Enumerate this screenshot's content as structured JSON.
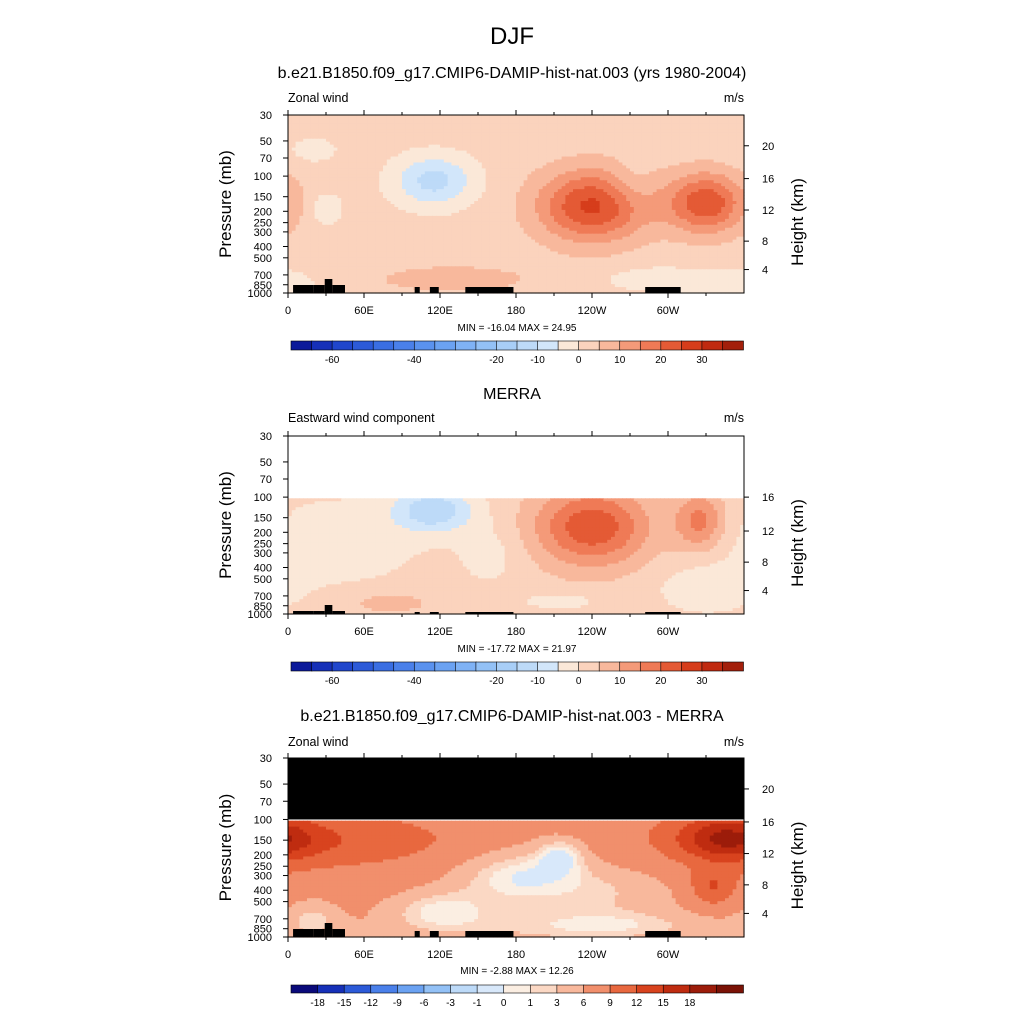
{
  "figure": {
    "title": "DJF"
  },
  "panels": [
    {
      "id": "model",
      "title": "b.e21.B1850.f09_g17.CMIP6-DAMIP-hist-nat.003 (yrs 1980-2004)",
      "left_label": "Zonal wind",
      "right_label": "m/s",
      "stats": "MIN = -16.04  MAX =  24.95"
    },
    {
      "id": "obs",
      "title": "MERRA",
      "left_label": "Eastward wind component",
      "right_label": "m/s",
      "stats": "MIN = -17.72  MAX =  21.97"
    },
    {
      "id": "diff",
      "title": "b.e21.B1850.f09_g17.CMIP6-DAMIP-hist-nat.003 - MERRA",
      "left_label": "Zonal wind",
      "right_label": "m/s",
      "stats": "MIN = -2.88  MAX =  12.26"
    }
  ],
  "chart_data": [
    {
      "type": "heatmap",
      "title": "b.e21.B1850.f09_g17.CMIP6-DAMIP-hist-nat.003 (yrs 1980-2004)",
      "xlabel": "",
      "ylabel": "Pressure (mb)",
      "ylabel_right": "Height (km)",
      "x_ticks": [
        "0",
        "60E",
        "120E",
        "180",
        "120W",
        "60W"
      ],
      "x_tick_values": [
        0,
        60,
        120,
        180,
        240,
        300
      ],
      "xlim": [
        0,
        360
      ],
      "y_ticks": [
        "30",
        "50",
        "70",
        "100",
        "150",
        "200",
        "250",
        "300",
        "400",
        "500",
        "700",
        "850",
        "1000"
      ],
      "y_tick_values": [
        30,
        50,
        70,
        100,
        150,
        200,
        250,
        300,
        400,
        500,
        700,
        850,
        1000
      ],
      "ylim": [
        1000,
        30
      ],
      "y_scale": "log",
      "height_ticks": [
        "4",
        "8",
        "12",
        "16",
        "20"
      ],
      "height_tick_pressures": [
        630,
        360,
        195,
        105,
        55
      ],
      "data_top_pressure": 30,
      "min": -16.04,
      "max": 24.95,
      "units": "m/s",
      "colorbar_levels": [
        -70,
        -65,
        -60,
        -55,
        -50,
        -45,
        -40,
        -35,
        -30,
        -25,
        -20,
        -15,
        -10,
        -5,
        0,
        5,
        10,
        15,
        20,
        25,
        30,
        35
      ],
      "colorbar_labels": [
        "-60",
        "-40",
        "-20",
        "-10",
        "0",
        "10",
        "20",
        "30"
      ],
      "colorbar_label_index": [
        2,
        6,
        10,
        12,
        14,
        16,
        18,
        20
      ],
      "features": [
        {
          "lon": 240,
          "p": 180,
          "value": 24,
          "dlon": 30,
          "dp": 0.5
        },
        {
          "lon": 330,
          "p": 170,
          "value": 22,
          "dlon": 22,
          "dp": 0.42
        },
        {
          "lon": 115,
          "p": 110,
          "value": -14,
          "dlon": 22,
          "dp": 0.35
        },
        {
          "lon": 30,
          "p": 190,
          "value": -6,
          "dlon": 9,
          "dp": 0.22
        },
        {
          "lon": 270,
          "p": 120,
          "value": -4,
          "dlon": 12,
          "dp": 0.3
        },
        {
          "lon": 20,
          "p": 60,
          "value": -4,
          "dlon": 15,
          "dp": 0.2
        },
        {
          "lon": 130,
          "p": 760,
          "value": 6,
          "dlon": 45,
          "dp": 0.2
        },
        {
          "lon": 290,
          "p": 760,
          "value": -5,
          "dlon": 30,
          "dp": 0.18
        },
        {
          "lon": 350,
          "p": 850,
          "value": -6,
          "dlon": 22,
          "dp": 0.2
        }
      ]
    },
    {
      "type": "heatmap",
      "title": "MERRA",
      "xlabel": "",
      "ylabel": "Pressure (mb)",
      "ylabel_right": "Height (km)",
      "x_ticks": [
        "0",
        "60E",
        "120E",
        "180",
        "120W",
        "60W"
      ],
      "x_tick_values": [
        0,
        60,
        120,
        180,
        240,
        300
      ],
      "xlim": [
        0,
        360
      ],
      "y_ticks": [
        "30",
        "50",
        "70",
        "100",
        "150",
        "200",
        "250",
        "300",
        "400",
        "500",
        "700",
        "850",
        "1000"
      ],
      "y_tick_values": [
        30,
        50,
        70,
        100,
        150,
        200,
        250,
        300,
        400,
        500,
        700,
        850,
        1000
      ],
      "ylim": [
        1000,
        30
      ],
      "y_scale": "log",
      "height_ticks": [
        "4",
        "8",
        "12",
        "16"
      ],
      "height_tick_pressures": [
        630,
        360,
        195,
        100
      ],
      "data_top_pressure": 100,
      "min": -17.72,
      "max": 21.97,
      "units": "m/s",
      "colorbar_levels": [
        -70,
        -65,
        -60,
        -55,
        -50,
        -45,
        -40,
        -35,
        -30,
        -25,
        -20,
        -15,
        -10,
        -5,
        0,
        5,
        10,
        15,
        20,
        25,
        30,
        35
      ],
      "colorbar_labels": [
        "-60",
        "-40",
        "-20",
        "-10",
        "0",
        "10",
        "20",
        "30"
      ],
      "colorbar_label_index": [
        2,
        6,
        10,
        12,
        14,
        16,
        18,
        20
      ],
      "features": [
        {
          "lon": 240,
          "p": 180,
          "value": 22,
          "dlon": 32,
          "dp": 0.55
        },
        {
          "lon": 325,
          "p": 160,
          "value": 15,
          "dlon": 14,
          "dp": 0.4
        },
        {
          "lon": 115,
          "p": 130,
          "value": -16,
          "dlon": 22,
          "dp": 0.3
        },
        {
          "lon": 40,
          "p": 240,
          "value": -5,
          "dlon": 45,
          "dp": 0.6
        },
        {
          "lon": 160,
          "p": 300,
          "value": -4,
          "dlon": 18,
          "dp": 0.45
        },
        {
          "lon": 80,
          "p": 800,
          "value": 5,
          "dlon": 28,
          "dp": 0.18
        },
        {
          "lon": 215,
          "p": 780,
          "value": -6,
          "dlon": 18,
          "dp": 0.1
        },
        {
          "lon": 330,
          "p": 600,
          "value": -5,
          "dlon": 28,
          "dp": 0.35
        }
      ]
    },
    {
      "type": "heatmap",
      "title": "b.e21.B1850.f09_g17.CMIP6-DAMIP-hist-nat.003 - MERRA",
      "xlabel": "",
      "ylabel": "Pressure (mb)",
      "ylabel_right": "Height (km)",
      "x_ticks": [
        "0",
        "60E",
        "120E",
        "180",
        "120W",
        "60W"
      ],
      "x_tick_values": [
        0,
        60,
        120,
        180,
        240,
        300
      ],
      "xlim": [
        0,
        360
      ],
      "y_ticks": [
        "30",
        "50",
        "70",
        "100",
        "150",
        "200",
        "250",
        "300",
        "400",
        "500",
        "700",
        "850",
        "1000"
      ],
      "y_tick_values": [
        30,
        50,
        70,
        100,
        150,
        200,
        250,
        300,
        400,
        500,
        700,
        850,
        1000
      ],
      "ylim": [
        1000,
        30
      ],
      "y_scale": "log",
      "height_ticks": [
        "4",
        "8",
        "12",
        "16",
        "20"
      ],
      "height_tick_pressures": [
        630,
        360,
        195,
        105,
        55
      ],
      "data_top_pressure": 100,
      "missing_region_color": "#000000",
      "min": -2.88,
      "max": 12.26,
      "units": "m/s",
      "colorbar_levels": [
        -21,
        -18,
        -15,
        -12,
        -9,
        -6,
        -3,
        -1,
        0,
        1,
        3,
        6,
        9,
        12,
        15,
        18,
        21
      ],
      "colorbar_labels": [
        "-18",
        "-15",
        "-12",
        "-9",
        "-6",
        "-3",
        "-1",
        "0",
        "1",
        "3",
        "6",
        "9",
        "12",
        "15",
        "18"
      ],
      "colorbar_label_index": [
        1,
        2,
        3,
        4,
        5,
        6,
        7,
        8,
        9,
        10,
        11,
        12,
        13,
        14,
        15
      ],
      "features": [
        {
          "lon": 0,
          "p": 150,
          "value": 4,
          "dlon": 180,
          "dp": 1.4
        },
        {
          "lon": 345,
          "p": 145,
          "value": 9,
          "dlon": 25,
          "dp": 0.3
        },
        {
          "lon": 335,
          "p": 380,
          "value": 5,
          "dlon": 12,
          "dp": 0.25
        },
        {
          "lon": 40,
          "p": 150,
          "value": 3,
          "dlon": 60,
          "dp": 0.3
        },
        {
          "lon": 215,
          "p": 200,
          "value": -4.5,
          "dlon": 14,
          "dp": 0.25
        },
        {
          "lon": 180,
          "p": 300,
          "value": -4,
          "dlon": 35,
          "dp": 0.35
        },
        {
          "lon": 250,
          "p": 400,
          "value": -3,
          "dlon": 45,
          "dp": 0.4
        },
        {
          "lon": 120,
          "p": 600,
          "value": -4,
          "dlon": 30,
          "dp": 0.3
        },
        {
          "lon": 250,
          "p": 800,
          "value": -3,
          "dlon": 60,
          "dp": 0.2
        },
        {
          "lon": 20,
          "p": 700,
          "value": -3,
          "dlon": 15,
          "dp": 0.3
        }
      ]
    }
  ],
  "colors": {
    "main_palette": [
      "#0a0a7a",
      "#0c1a9a",
      "#1630b8",
      "#2046cc",
      "#2c5ad8",
      "#3a6ee2",
      "#4a80ea",
      "#5a92ef",
      "#6ba2f2",
      "#7fb2f5",
      "#93c1f6",
      "#a8cef7",
      "#bddaf8",
      "#d2e6fa",
      "#fbe8d8",
      "#fbd3bd",
      "#f8b89c",
      "#f49a79",
      "#ef7a56",
      "#e45a35",
      "#d63d1b",
      "#c02a10",
      "#a31f0b",
      "#821508"
    ],
    "diff_palette": [
      "#0a0a7a",
      "#1630b8",
      "#2c5ad8",
      "#4a80ea",
      "#6ba2f2",
      "#93c1f6",
      "#bddaf8",
      "#d8e8fa",
      "#fbeee2",
      "#fbd8c4",
      "#f8b89c",
      "#f18f6c",
      "#e8683f",
      "#d8431e",
      "#bf2c10",
      "#9c1c0a",
      "#7a1206"
    ],
    "topography": "#000000",
    "missing": "#000000"
  }
}
